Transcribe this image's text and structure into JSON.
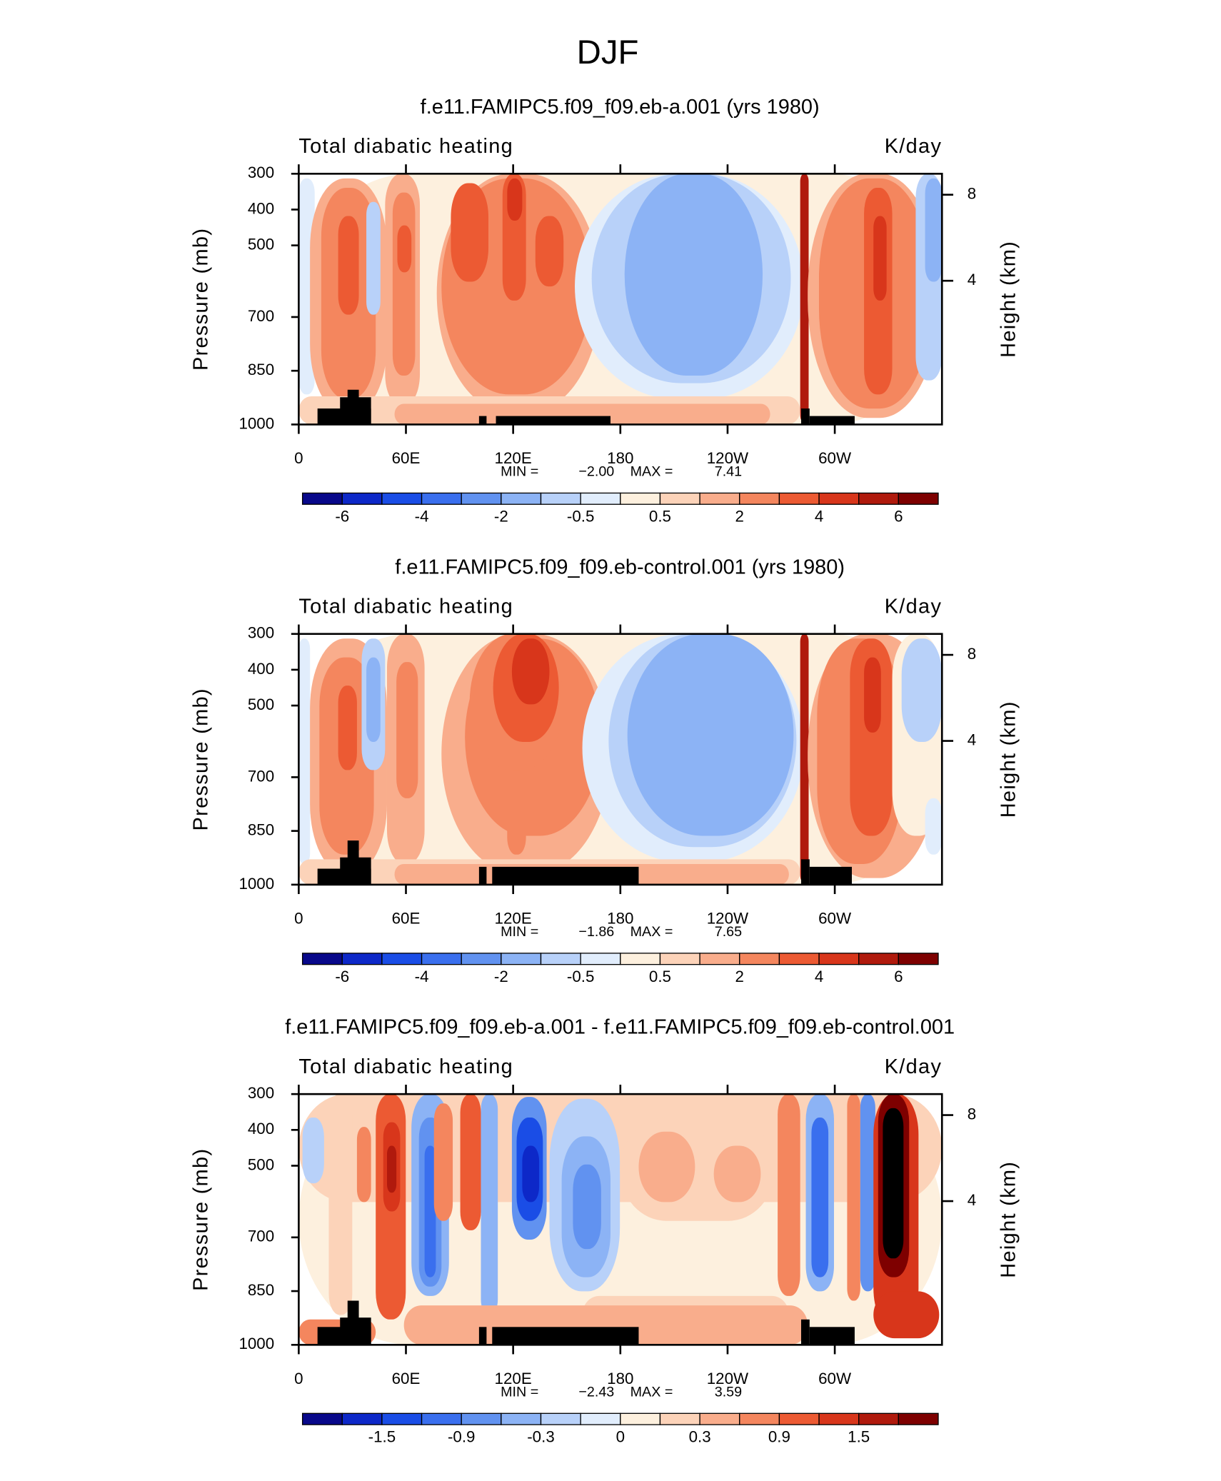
{
  "title": "DJF",
  "chart_data": [
    {
      "type": "contour",
      "title": "f.e11.FAMIPC5.f09_f09.eb-a.001 (yrs 1980)",
      "left_label": "Total diabatic heating",
      "right_label": "K/day",
      "ylabel": "Pressure (mb)",
      "y2label": "Height (km)",
      "xlim": [
        0,
        360
      ],
      "xticks": [
        0,
        {
          "value": 60,
          "label": "60E"
        },
        {
          "value": 120,
          "label": "120E"
        },
        180,
        {
          "value": 240,
          "label": "120W"
        },
        {
          "value": 300,
          "label": "60W"
        }
      ],
      "ylim": [
        1000,
        300
      ],
      "yticks": [
        300,
        400,
        500,
        700,
        850,
        1000
      ],
      "y2ticks": [
        4,
        8
      ],
      "min_name": "MIN =",
      "max_name": "MAX =",
      "min": -2.0,
      "max": 7.41,
      "value_labels": {
        "min": "−2.00",
        "max": "7.41"
      },
      "colorbar": {
        "levels": [
          -6,
          -5,
          -4,
          -3,
          -2,
          -1,
          -0.5,
          0,
          0.5,
          1,
          2,
          3,
          4,
          5,
          6
        ],
        "ticks": [
          -6,
          -4,
          -2,
          -0.5,
          0.5,
          2,
          4,
          6
        ],
        "colors": [
          "#08088a",
          "#0d28c8",
          "#1a4de6",
          "#3a6fee",
          "#6192f0",
          "#8cb3f5",
          "#b8d1f9",
          "#e1edfc",
          "#fdf0de",
          "#fcd3b9",
          "#f9ad8c",
          "#f4865e",
          "#ec5a33",
          "#d8361b",
          "#b01a0d",
          "#7e0000"
        ]
      }
    },
    {
      "type": "contour",
      "title": "f.e11.FAMIPC5.f09_f09.eb-control.001 (yrs 1980)",
      "left_label": "Total diabatic heating",
      "right_label": "K/day",
      "ylabel": "Pressure (mb)",
      "y2label": "Height (km)",
      "xlim": [
        0,
        360
      ],
      "xticks": [
        0,
        {
          "value": 60,
          "label": "60E"
        },
        {
          "value": 120,
          "label": "120E"
        },
        180,
        {
          "value": 240,
          "label": "120W"
        },
        {
          "value": 300,
          "label": "60W"
        }
      ],
      "ylim": [
        1000,
        300
      ],
      "yticks": [
        300,
        400,
        500,
        700,
        850,
        1000
      ],
      "y2ticks": [
        4,
        8
      ],
      "min_name": "MIN =",
      "max_name": "MAX =",
      "min": -1.86,
      "max": 7.65,
      "value_labels": {
        "min": "−1.86",
        "max": "7.65"
      },
      "colorbar": {
        "levels": [
          -6,
          -5,
          -4,
          -3,
          -2,
          -1,
          -0.5,
          0,
          0.5,
          1,
          2,
          3,
          4,
          5,
          6
        ],
        "ticks": [
          -6,
          -4,
          -2,
          -0.5,
          0.5,
          2,
          4,
          6
        ],
        "colors": [
          "#08088a",
          "#0d28c8",
          "#1a4de6",
          "#3a6fee",
          "#6192f0",
          "#8cb3f5",
          "#b8d1f9",
          "#e1edfc",
          "#fdf0de",
          "#fcd3b9",
          "#f9ad8c",
          "#f4865e",
          "#ec5a33",
          "#d8361b",
          "#b01a0d",
          "#7e0000"
        ]
      }
    },
    {
      "type": "contour",
      "title": "f.e11.FAMIPC5.f09_f09.eb-a.001 - f.e11.FAMIPC5.f09_f09.eb-control.001",
      "left_label": "Total diabatic heating",
      "right_label": "K/day",
      "ylabel": "Pressure (mb)",
      "y2label": "Height (km)",
      "xlim": [
        0,
        360
      ],
      "xticks": [
        0,
        {
          "value": 60,
          "label": "60E"
        },
        {
          "value": 120,
          "label": "120E"
        },
        180,
        {
          "value": 240,
          "label": "120W"
        },
        {
          "value": 300,
          "label": "60W"
        }
      ],
      "ylim": [
        1000,
        300
      ],
      "yticks": [
        300,
        400,
        500,
        700,
        850,
        1000
      ],
      "y2ticks": [
        4,
        8
      ],
      "min_name": "MIN =",
      "max_name": "MAX =",
      "min": -2.43,
      "max": 3.59,
      "value_labels": {
        "min": "−2.43",
        "max": "3.59"
      },
      "colorbar": {
        "levels": [
          -1.8,
          -1.5,
          -1.2,
          -0.9,
          -0.6,
          -0.3,
          -0.1,
          0,
          0.1,
          0.3,
          0.6,
          0.9,
          1.2,
          1.5,
          1.8
        ],
        "ticks": [
          -1.5,
          -0.9,
          -0.3,
          0,
          0.3,
          0.9,
          1.5
        ],
        "colors": [
          "#08088a",
          "#0d28c8",
          "#1a4de6",
          "#3a6fee",
          "#6192f0",
          "#8cb3f5",
          "#b8d1f9",
          "#e1edfc",
          "#fdf0de",
          "#fcd3b9",
          "#f9ad8c",
          "#f4865e",
          "#ec5a33",
          "#d8361b",
          "#b01a0d",
          "#7e0000"
        ]
      }
    }
  ]
}
